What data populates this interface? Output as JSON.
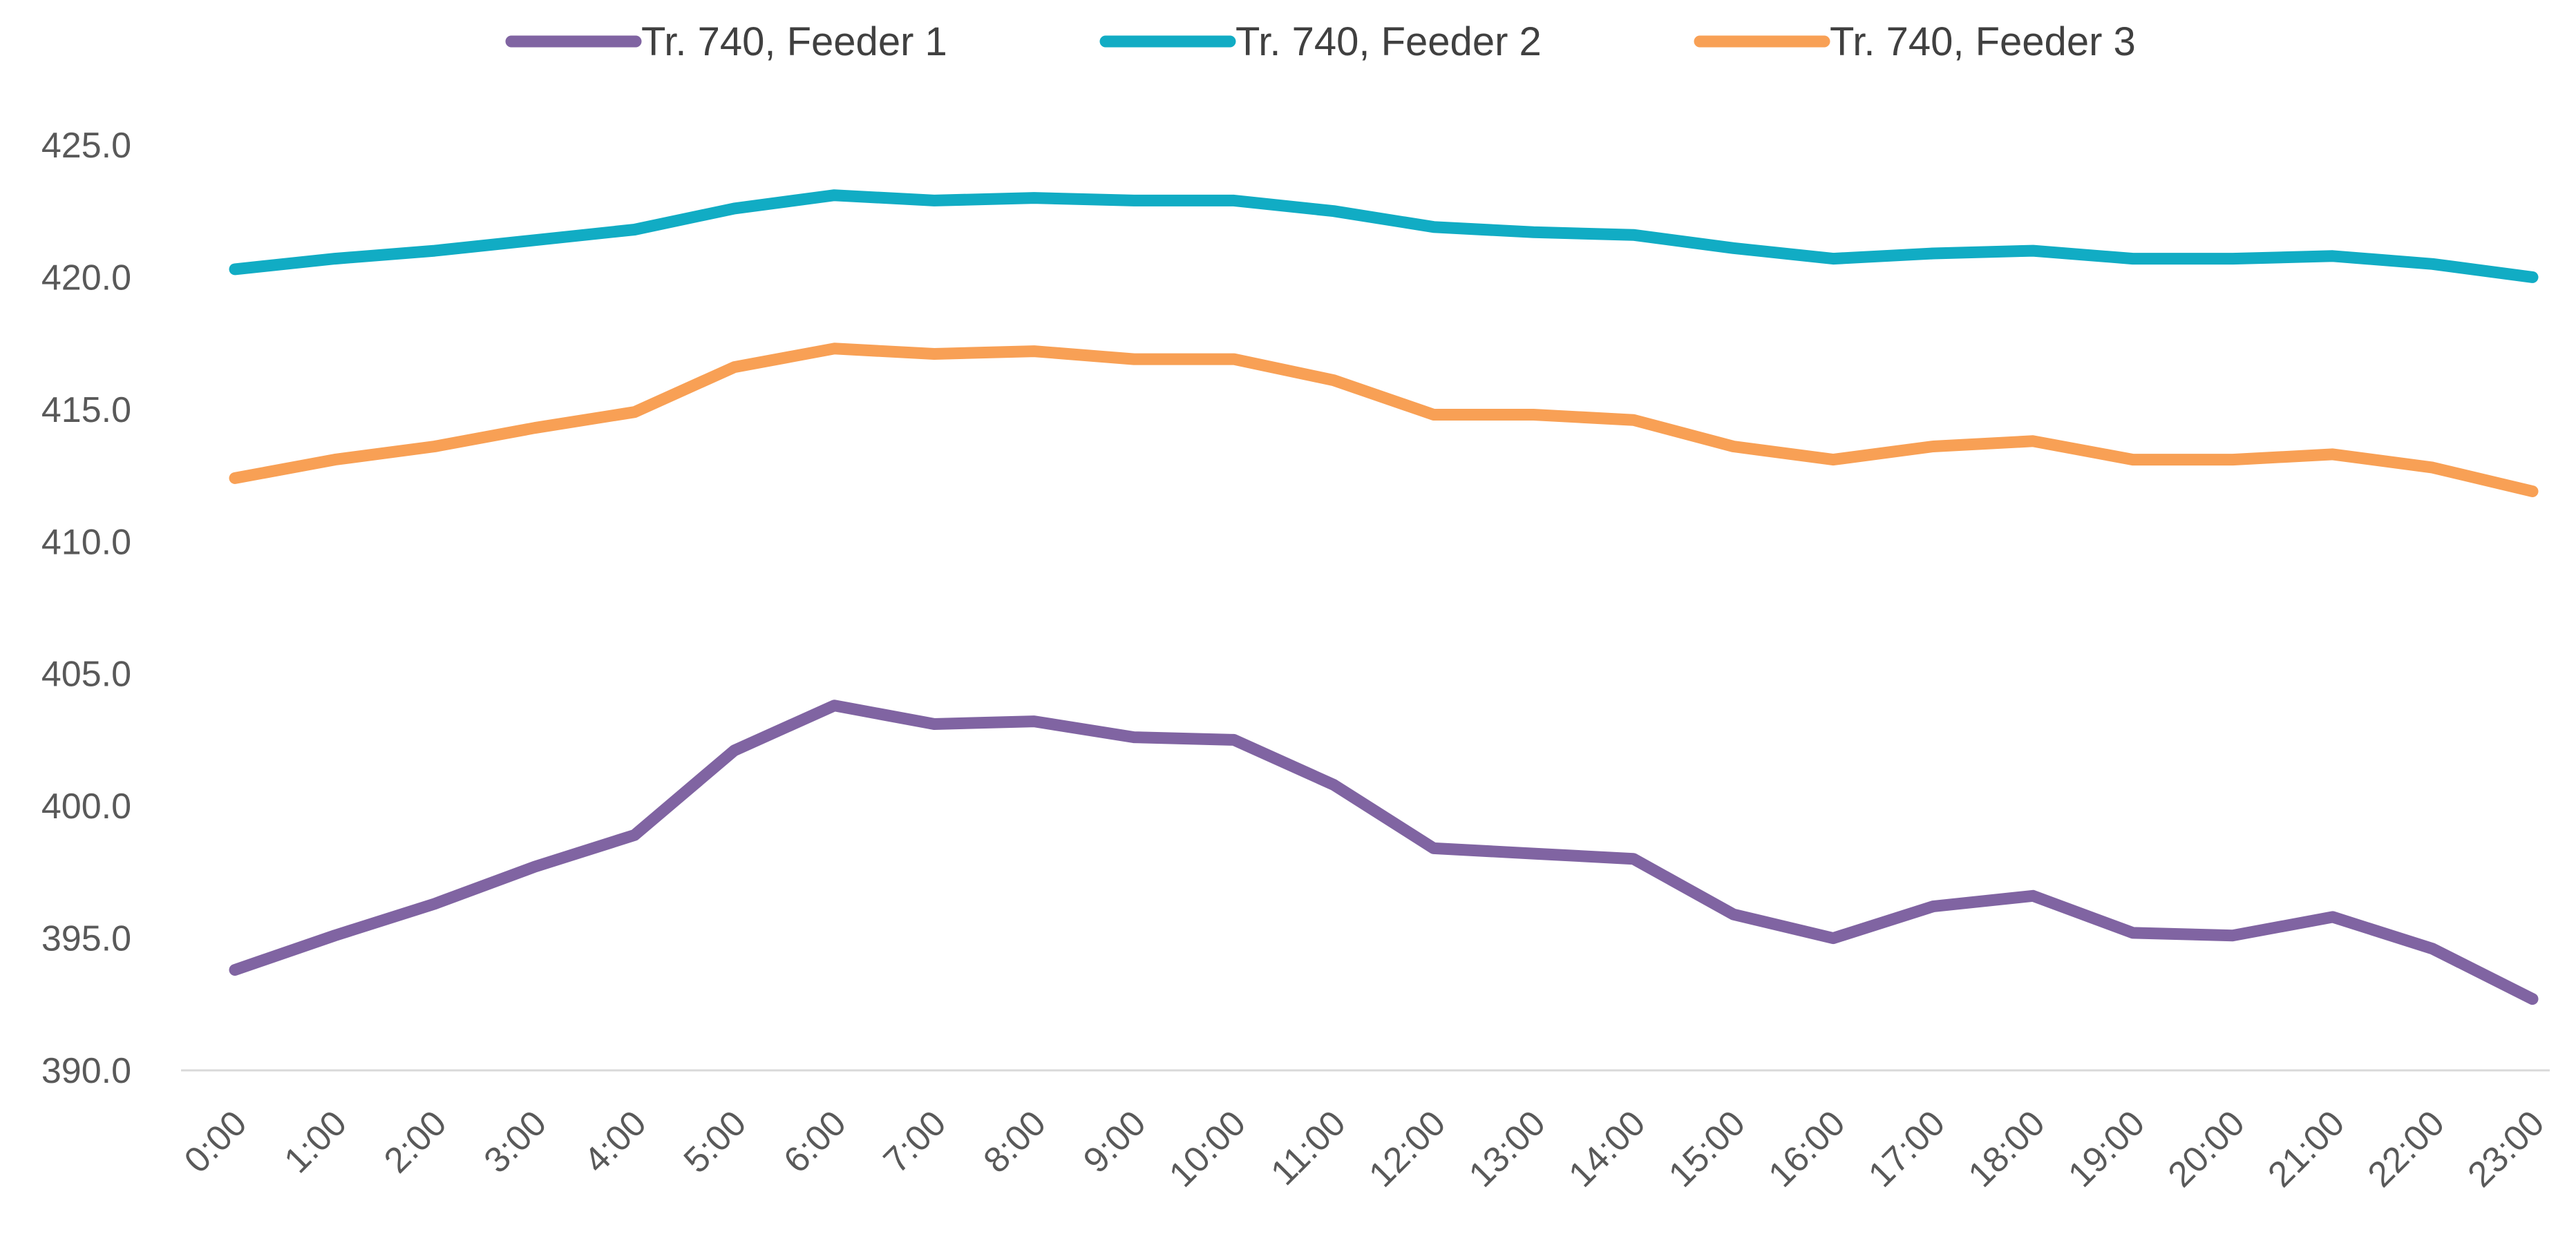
{
  "chart_data": {
    "type": "line",
    "title": "",
    "xlabel": "",
    "ylabel": "",
    "categories": [
      "0:00",
      "1:00",
      "2:00",
      "3:00",
      "4:00",
      "5:00",
      "6:00",
      "7:00",
      "8:00",
      "9:00",
      "10:00",
      "11:00",
      "12:00",
      "13:00",
      "14:00",
      "15:00",
      "16:00",
      "17:00",
      "18:00",
      "19:00",
      "20:00",
      "21:00",
      "22:00",
      "23:00"
    ],
    "ylim": [
      390,
      425
    ],
    "yticks": [
      390,
      395,
      400,
      405,
      410,
      415,
      420,
      425
    ],
    "ytick_labels": [
      "390.0",
      "395.0",
      "400.0",
      "405.0",
      "410.0",
      "415.0",
      "420.0",
      "425.0"
    ],
    "legend_position": "top",
    "grid": false,
    "series": [
      {
        "name": "Tr. 740, Feeder 1",
        "color": "#8064A2",
        "values": [
          393.8,
          395.1,
          396.3,
          397.7,
          398.9,
          402.1,
          403.8,
          403.1,
          403.2,
          402.6,
          402.5,
          400.8,
          398.4,
          398.2,
          398.0,
          395.9,
          395.0,
          396.2,
          396.6,
          395.2,
          395.1,
          395.8,
          394.6,
          392.7
        ]
      },
      {
        "name": "Tr. 740, Feeder 2",
        "color": "#11ACC4",
        "values": [
          420.3,
          420.7,
          421.0,
          421.4,
          421.8,
          422.6,
          423.1,
          422.9,
          423.0,
          422.9,
          422.9,
          422.5,
          421.9,
          421.7,
          421.6,
          421.1,
          420.7,
          420.9,
          421.0,
          420.7,
          420.7,
          420.8,
          420.5,
          420.0
        ]
      },
      {
        "name": "Tr. 740, Feeder 3",
        "color": "#F8A055",
        "values": [
          412.4,
          413.1,
          413.6,
          414.3,
          414.9,
          416.6,
          417.3,
          417.1,
          417.2,
          416.9,
          416.9,
          416.1,
          414.8,
          414.8,
          414.6,
          413.6,
          413.1,
          413.6,
          413.8,
          413.1,
          413.1,
          413.3,
          412.8,
          411.9
        ]
      }
    ]
  }
}
